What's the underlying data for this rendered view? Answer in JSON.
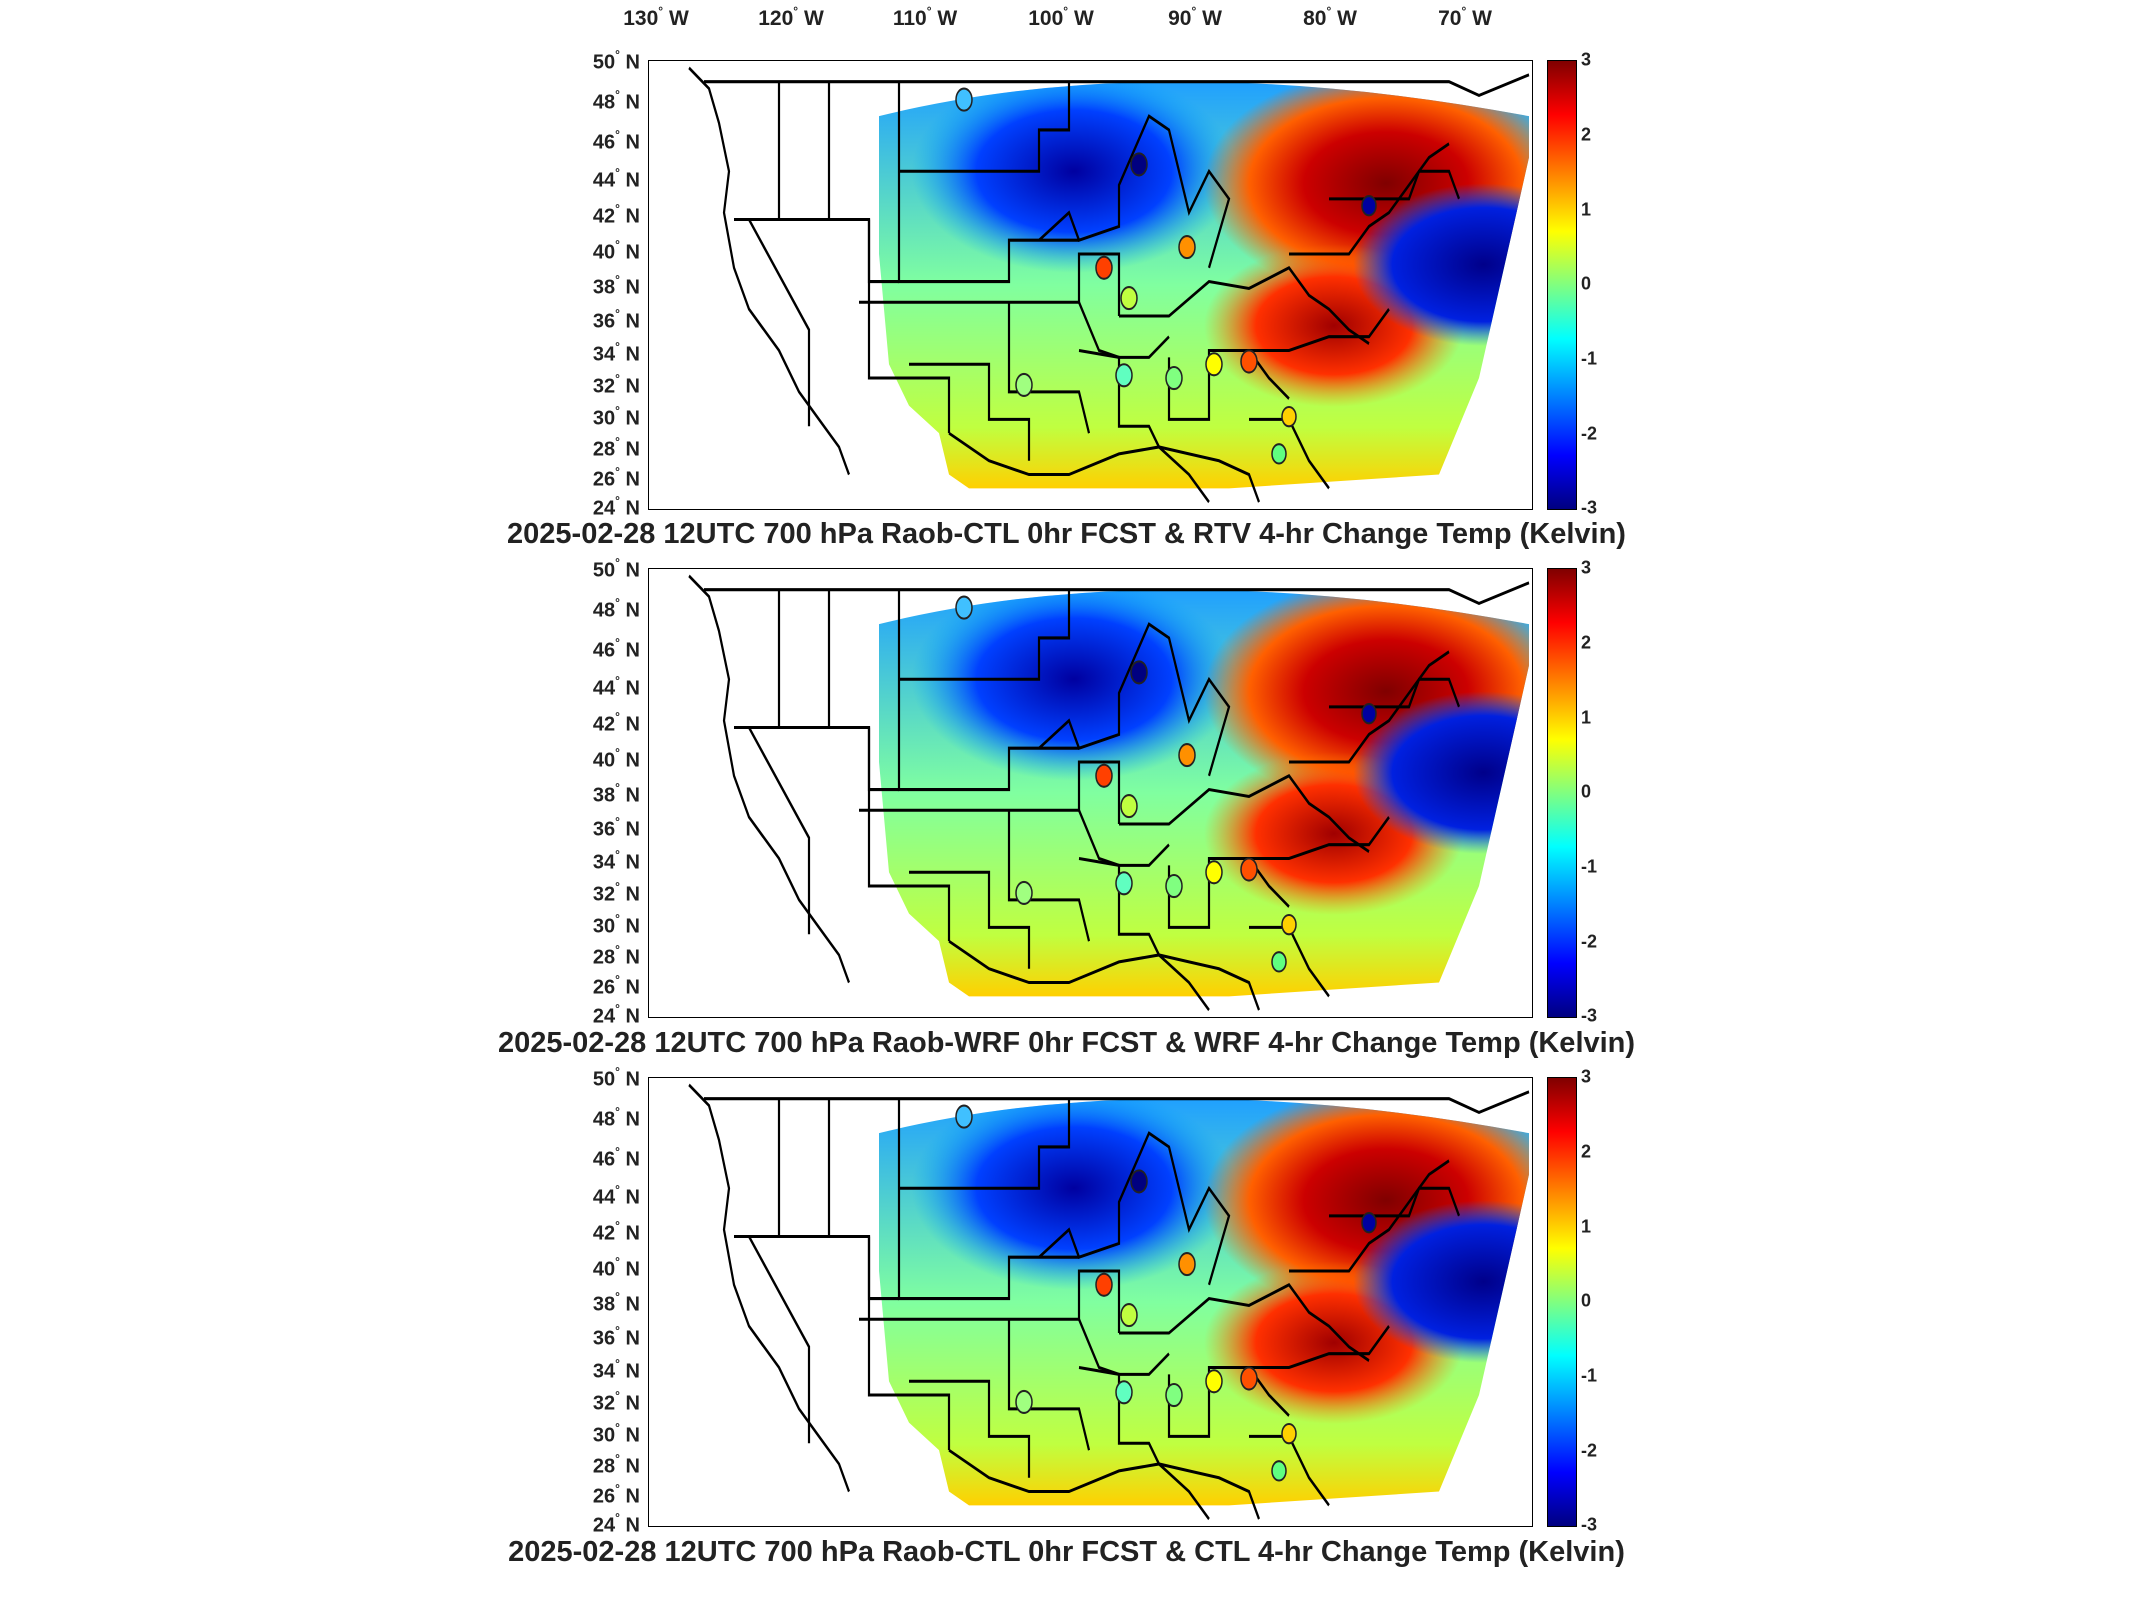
{
  "lon_labels": [
    "130",
    "120",
    "110",
    "100",
    "90",
    "80",
    "70"
  ],
  "lon_suffix": "W",
  "lat_labels": [
    "50",
    "48",
    "46",
    "44",
    "42",
    "40",
    "38",
    "36",
    "34",
    "32",
    "30",
    "28",
    "26",
    "24"
  ],
  "lat_suffix": "N",
  "colorbar": {
    "ticks": [
      "3",
      "2",
      "1",
      "0",
      "-1",
      "-2",
      "-3"
    ],
    "range": [
      -3,
      3
    ],
    "colors": [
      "#800000",
      "#ff0000",
      "#ff8000",
      "#ffff00",
      "#80ff80",
      "#00ffff",
      "#0080ff",
      "#0000ff",
      "#000080"
    ]
  },
  "panels": [
    {
      "title": "2025-02-28 12UTC 700 hPa Raob-CTL 0hr FCST & RTV 4-hr Change Temp (Kelvin)"
    },
    {
      "title": "2025-02-28 12UTC 700 hPa Raob-WRF 0hr FCST & WRF 4-hr Change Temp (Kelvin)"
    },
    {
      "title": "2025-02-28 12UTC 700 hPa Raob-CTL 0hr FCST & CTL 4-hr Change Temp (Kelvin)"
    }
  ]
}
